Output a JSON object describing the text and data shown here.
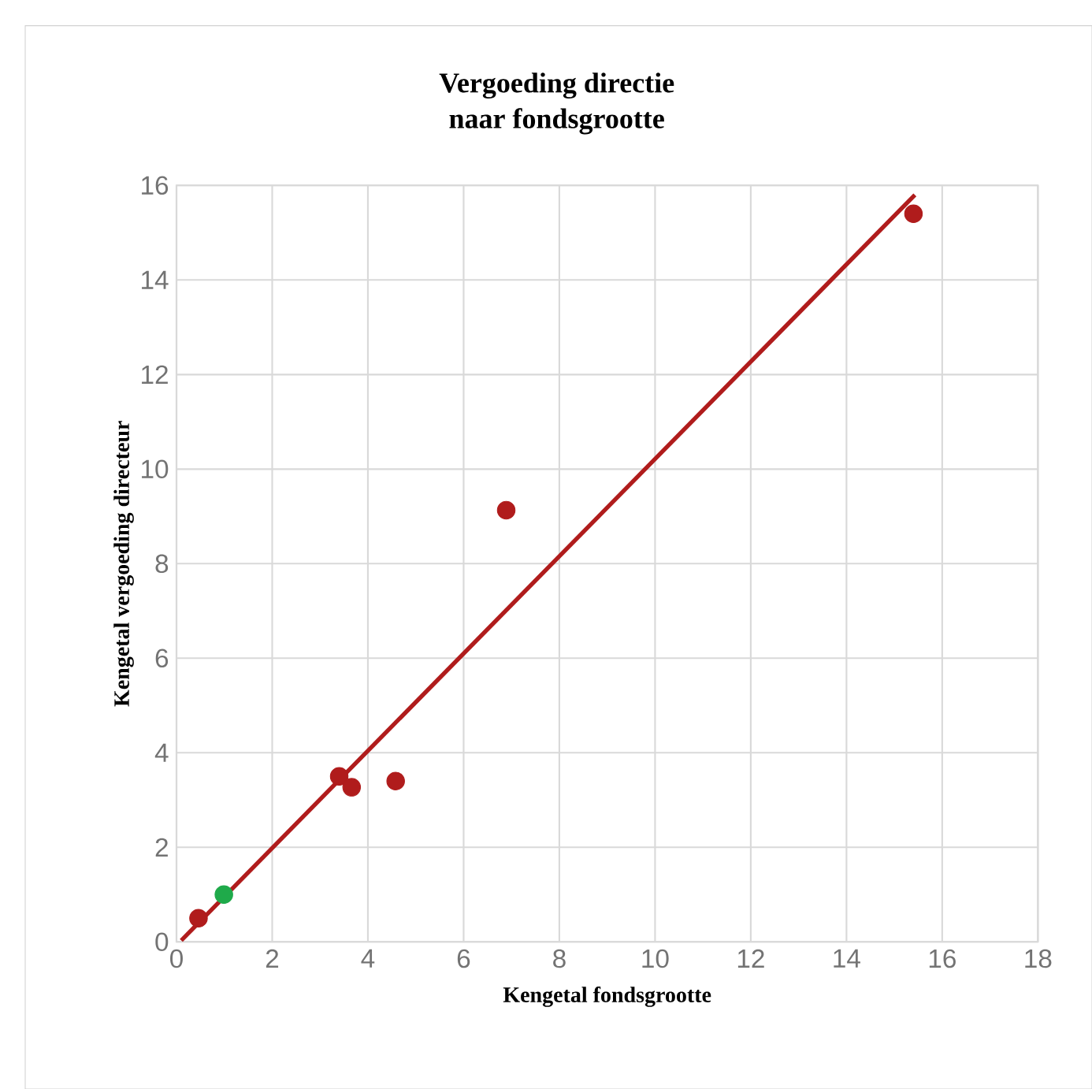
{
  "chart_data": {
    "type": "scatter",
    "title": "Vergoeding directie\nnaar fondsgrootte",
    "xlabel": "Kengetal fondsgrootte",
    "ylabel": "Kengetal vergoeding directeur",
    "series": [
      {
        "color": "#b01c1c",
        "marker": "circle",
        "x": [
          0.46,
          3.4,
          3.66,
          4.58,
          6.89,
          15.4
        ],
        "values": [
          0.5,
          3.5,
          3.27,
          3.4,
          9.13,
          15.4
        ]
      },
      {
        "color": "#1faa4a",
        "marker": "circle",
        "x": [
          0.99
        ],
        "values": [
          1.0
        ]
      },
      {
        "type": "line",
        "marker": "none",
        "color": "#b01c1c",
        "x": [
          0.1,
          15.43
        ],
        "values": [
          0.03,
          15.8
        ]
      }
    ],
    "xlim": [
      0,
      18
    ],
    "ylim": [
      0,
      16
    ],
    "xticks": [
      0,
      2,
      4,
      6,
      8,
      10,
      12,
      14,
      16,
      18
    ],
    "yticks": [
      0,
      2,
      4,
      6,
      8,
      10,
      12,
      14,
      16
    ],
    "grid": true
  }
}
